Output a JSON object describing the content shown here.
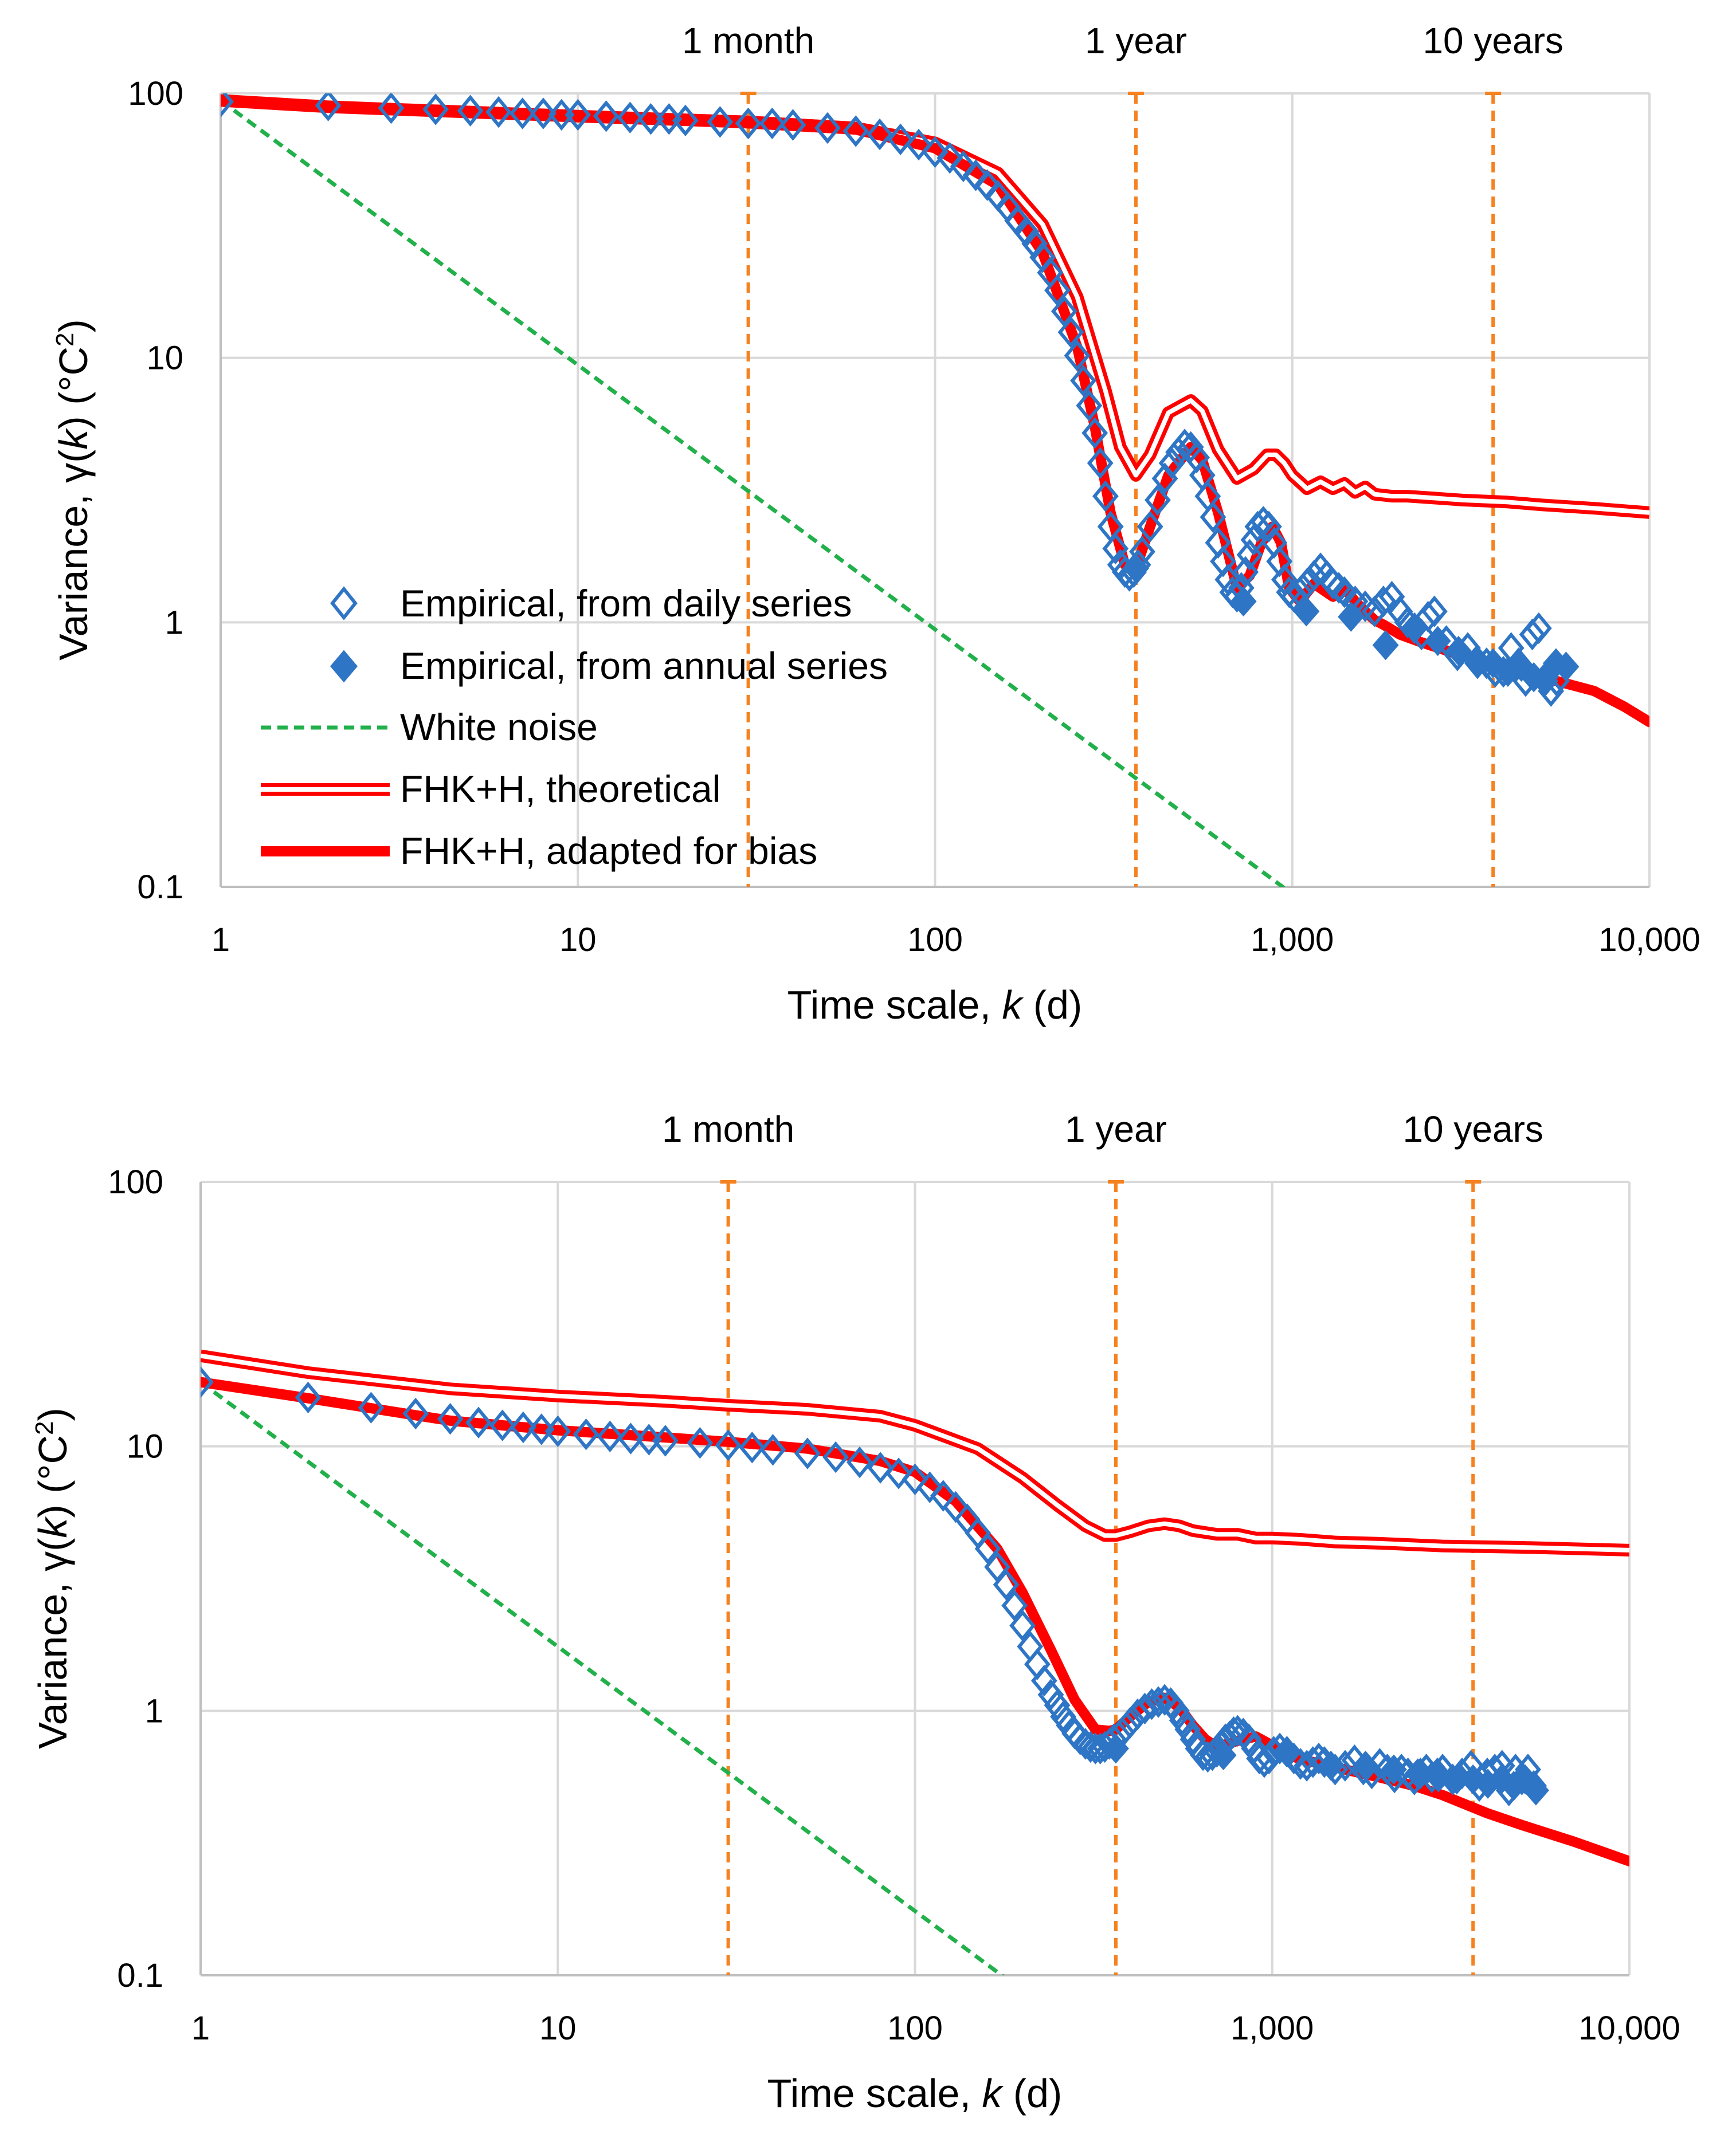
{
  "chart_data": [
    {
      "type": "scatter",
      "xscale": "log",
      "yscale": "log",
      "xlim": [
        1,
        10000
      ],
      "ylim": [
        0.1,
        100
      ],
      "grid": true,
      "xlabel": [
        "Time scale, ",
        "k",
        " (d)"
      ],
      "ylabel": [
        "Variance, γ(",
        "k",
        ") (°C",
        "2",
        ")"
      ],
      "xticks": [
        1,
        10,
        100,
        1000,
        10000
      ],
      "xtick_labels": [
        "1",
        "10",
        "100",
        "1,000",
        "10,000"
      ],
      "yticks": [
        0.1,
        1,
        10,
        100
      ],
      "ytick_labels": [
        "0.1",
        "1",
        "10",
        "100"
      ],
      "reference_lines": [
        {
          "label": "1 month",
          "x": 30
        },
        {
          "label": "1 year",
          "x": 365
        },
        {
          "label": "10 years",
          "x": 3650
        }
      ],
      "legend": {
        "placement": "lower-left",
        "entries": [
          {
            "key": "daily",
            "label": "Empirical, from daily series",
            "style": "open-diamond"
          },
          {
            "key": "annual",
            "label": "Empirical, from annual series",
            "style": "filled-diamond"
          },
          {
            "key": "white",
            "label": "White noise",
            "style": "dashed-green"
          },
          {
            "key": "theo",
            "label": "FHK+H, theoretical",
            "style": "double-red"
          },
          {
            "key": "adapt",
            "label": "FHK+H, adapted for bias",
            "style": "thick-red"
          }
        ]
      },
      "colors": {
        "empirical": "#2E75C5",
        "white_noise": "#22B04B",
        "fhk": "#FF0000",
        "reference": "#F5811F",
        "grid": "#D9D9D9",
        "axis": "#BFBFBF"
      },
      "series": [
        {
          "key": "theo",
          "x": [
            1,
            2,
            5,
            10,
            30,
            60,
            100,
            150,
            200,
            250,
            300,
            330,
            365,
            400,
            450,
            520,
            560,
            620,
            700,
            780,
            850,
            900,
            950,
            1000,
            1100,
            1200,
            1300,
            1400,
            1500,
            1600,
            1700,
            1900,
            2100,
            2500,
            3000,
            4000,
            5000,
            7000,
            10000
          ],
          "y": [
            94,
            89,
            85,
            82,
            78,
            74,
            65,
            50,
            32,
            17,
            7.5,
            4.6,
            3.6,
            4.3,
            6.2,
            6.9,
            6.3,
            4.5,
            3.5,
            3.8,
            4.3,
            4.3,
            4.0,
            3.6,
            3.2,
            3.4,
            3.2,
            3.35,
            3.1,
            3.25,
            3.05,
            3.0,
            3.0,
            2.95,
            2.9,
            2.85,
            2.78,
            2.7,
            2.6
          ]
        },
        {
          "key": "adapt",
          "x": [
            1,
            2,
            5,
            10,
            30,
            60,
            100,
            150,
            200,
            250,
            280,
            310,
            340,
            365,
            400,
            450,
            520,
            560,
            620,
            700,
            760,
            820,
            880,
            930,
            980,
            1050,
            1150,
            1300,
            1400,
            1500,
            1600,
            1700,
            1800,
            2000,
            2300,
            2800,
            3500,
            4500,
            5500,
            7000,
            8500,
            10000
          ],
          "y": [
            94,
            89,
            85,
            82,
            77,
            73,
            62,
            45,
            25,
            11,
            5.5,
            2.6,
            1.65,
            1.6,
            2.3,
            3.6,
            4.6,
            4.1,
            2.6,
            1.35,
            1.5,
            2.0,
            2.3,
            2.0,
            1.35,
            1.2,
            1.4,
            1.25,
            1.35,
            1.2,
            1.1,
            1.02,
            0.98,
            0.9,
            0.84,
            0.77,
            0.7,
            0.64,
            0.6,
            0.55,
            0.48,
            0.42
          ]
        },
        {
          "key": "white",
          "x": [
            1,
            1000
          ],
          "y": [
            94,
            0.094
          ]
        },
        {
          "key": "daily",
          "x": [
            1,
            2,
            3,
            4,
            5,
            6,
            7,
            8,
            9,
            10,
            12,
            14,
            16,
            18,
            20,
            25,
            30,
            35,
            40,
            50,
            60,
            70,
            80,
            90,
            100,
            110,
            120,
            130,
            140,
            150,
            160,
            170,
            180,
            190,
            200,
            210,
            220,
            230,
            240,
            250,
            260,
            270,
            280,
            290,
            300,
            310,
            320,
            330,
            340,
            350,
            360,
            370,
            380,
            400,
            420,
            440,
            460,
            480,
            500,
            520,
            540,
            560,
            580,
            600,
            620,
            640,
            660,
            680,
            700,
            720,
            740,
            760,
            780,
            800,
            830,
            860,
            890,
            920,
            950,
            980,
            1010,
            1050,
            1100,
            1150,
            1200,
            1250,
            1300,
            1350,
            1400,
            1500,
            1600,
            1700,
            1800,
            1900,
            2000,
            2100,
            2200,
            2300,
            2400,
            2500,
            2700,
            2900,
            3100,
            3300,
            3500,
            3700,
            3900,
            4100,
            4300,
            4500,
            4700,
            4900,
            5100,
            5300,
            5500
          ],
          "y": [
            93,
            90,
            88,
            87,
            86,
            85,
            84,
            84,
            83,
            83,
            82,
            81,
            80,
            80,
            79,
            78,
            77,
            77,
            76,
            74,
            72,
            70,
            67,
            64,
            60,
            57,
            53,
            49,
            45,
            41,
            37,
            33,
            30,
            27,
            24,
            21,
            18,
            15,
            12.5,
            10.2,
            8.2,
            6.6,
            5.2,
            4.0,
            3.0,
            2.3,
            1.9,
            1.65,
            1.55,
            1.5,
            1.55,
            1.65,
            1.85,
            2.3,
            2.9,
            3.5,
            4.0,
            4.4,
            4.7,
            4.6,
            4.2,
            3.6,
            3.0,
            2.5,
            2.0,
            1.7,
            1.45,
            1.3,
            1.25,
            1.35,
            1.55,
            1.8,
            2.05,
            2.3,
            2.4,
            2.3,
            2.0,
            1.7,
            1.45,
            1.3,
            1.25,
            1.3,
            1.4,
            1.5,
            1.6,
            1.5,
            1.4,
            1.35,
            1.3,
            1.2,
            1.15,
            1.1,
            1.2,
            1.25,
            1.1,
            1.0,
            0.95,
            0.9,
            1.05,
            1.1,
            0.85,
            0.75,
            0.8,
            0.7,
            0.7,
            0.65,
            0.65,
            0.8,
            0.7,
            0.6,
            0.9,
            0.95,
            0.6,
            0.55,
            0.6
          ]
        },
        {
          "key": "annual",
          "x": [
            365,
            730,
            1095,
            1460,
            1825,
            2190,
            2555,
            2920,
            3285,
            3650,
            4015,
            4380,
            4745,
            5110,
            5475,
            5840
          ],
          "y": [
            1.6,
            1.2,
            1.1,
            1.05,
            0.82,
            0.95,
            0.85,
            0.78,
            0.72,
            0.7,
            0.65,
            0.68,
            0.62,
            0.62,
            0.7,
            0.68
          ]
        }
      ]
    },
    {
      "type": "scatter",
      "xscale": "log",
      "yscale": "log",
      "xlim": [
        1,
        10000
      ],
      "ylim": [
        0.1,
        100
      ],
      "grid": true,
      "xlabel": [
        "Time scale, ",
        "k",
        " (d)"
      ],
      "ylabel": [
        "Variance, γ(",
        "k",
        ") (°C",
        "2",
        ")"
      ],
      "xticks": [
        1,
        10,
        100,
        1000,
        10000
      ],
      "xtick_labels": [
        "1",
        "10",
        "100",
        "1,000",
        "10,000"
      ],
      "yticks": [
        0.1,
        1,
        10,
        100
      ],
      "ytick_labels": [
        "0.1",
        "1",
        "10",
        "100"
      ],
      "reference_lines": [
        {
          "label": "1 month",
          "x": 30
        },
        {
          "label": "1 year",
          "x": 365
        },
        {
          "label": "10 years",
          "x": 3650
        }
      ],
      "colors": {
        "empirical": "#2E75C5",
        "white_noise": "#22B04B",
        "fhk": "#FF0000",
        "reference": "#F5811F",
        "grid": "#D9D9D9",
        "axis": "#BFBFBF"
      },
      "series": [
        {
          "key": "theo",
          "x": [
            1,
            2,
            5,
            10,
            20,
            30,
            50,
            80,
            100,
            150,
            200,
            250,
            300,
            340,
            365,
            400,
            450,
            500,
            550,
            600,
            700,
            800,
            900,
            1000,
            1200,
            1500,
            2000,
            3000,
            5000,
            10000
          ],
          "y": [
            22,
            19,
            16.5,
            15.5,
            14.8,
            14.3,
            13.8,
            13,
            12,
            9.8,
            7.6,
            6.0,
            5.0,
            4.6,
            4.6,
            4.75,
            5.0,
            5.1,
            5.0,
            4.8,
            4.65,
            4.65,
            4.5,
            4.5,
            4.45,
            4.35,
            4.3,
            4.2,
            4.15,
            4.05
          ]
        },
        {
          "key": "adapt",
          "x": [
            1,
            2,
            5,
            10,
            20,
            30,
            50,
            80,
            100,
            130,
            170,
            200,
            240,
            280,
            320,
            350,
            365,
            400,
            450,
            500,
            550,
            600,
            650,
            700,
            800,
            900,
            1000,
            1100,
            1300,
            1600,
            2000,
            2500,
            3000,
            4000,
            5000,
            7000,
            10000
          ],
          "y": [
            17.5,
            15.2,
            12.5,
            11.5,
            10.8,
            10.4,
            9.8,
            8.8,
            8.0,
            6.2,
            4.1,
            2.8,
            1.7,
            1.1,
            0.85,
            0.84,
            0.85,
            0.95,
            1.08,
            1.12,
            1.03,
            0.88,
            0.78,
            0.73,
            0.77,
            0.8,
            0.74,
            0.68,
            0.64,
            0.6,
            0.56,
            0.52,
            0.48,
            0.41,
            0.37,
            0.32,
            0.27
          ]
        },
        {
          "key": "white",
          "x": [
            1,
            180
          ],
          "y": [
            17.5,
            0.0972
          ]
        },
        {
          "key": "daily",
          "x": [
            1,
            2,
            3,
            4,
            5,
            6,
            7,
            8,
            9,
            10,
            12,
            14,
            16,
            18,
            20,
            25,
            30,
            35,
            40,
            50,
            60,
            70,
            80,
            90,
            100,
            110,
            120,
            130,
            140,
            150,
            160,
            170,
            180,
            190,
            200,
            210,
            220,
            230,
            240,
            250,
            260,
            270,
            280,
            290,
            300,
            310,
            320,
            330,
            340,
            350,
            360,
            380,
            400,
            420,
            440,
            460,
            480,
            500,
            520,
            540,
            560,
            580,
            600,
            620,
            640,
            660,
            680,
            700,
            720,
            740,
            760,
            780,
            800,
            830,
            860,
            890,
            920,
            950,
            980,
            1010,
            1050,
            1100,
            1150,
            1200,
            1250,
            1300,
            1350,
            1400,
            1500,
            1600,
            1700,
            1800,
            1900,
            2000,
            2100,
            2200,
            2300,
            2400,
            2500,
            2600,
            2700,
            2800,
            2900,
            3000,
            3200,
            3400,
            3600,
            3800,
            4000,
            4200,
            4400,
            4600,
            4800,
            5000,
            5200,
            5400
          ],
          "y": [
            17.5,
            15.3,
            14,
            13.3,
            12.7,
            12.3,
            12,
            11.8,
            11.6,
            11.4,
            11.1,
            10.9,
            10.7,
            10.6,
            10.5,
            10.3,
            10.1,
            9.9,
            9.7,
            9.4,
            9.1,
            8.7,
            8.3,
            7.9,
            7.5,
            7.0,
            6.5,
            5.9,
            5.3,
            4.7,
            4.1,
            3.5,
            3.0,
            2.5,
            2.1,
            1.75,
            1.5,
            1.3,
            1.15,
            1.05,
            0.95,
            0.88,
            0.82,
            0.78,
            0.75,
            0.73,
            0.72,
            0.72,
            0.73,
            0.75,
            0.78,
            0.83,
            0.9,
            0.97,
            1.02,
            1.06,
            1.08,
            1.1,
            1.07,
            1.0,
            0.92,
            0.85,
            0.78,
            0.72,
            0.68,
            0.67,
            0.68,
            0.7,
            0.74,
            0.78,
            0.8,
            0.83,
            0.84,
            0.82,
            0.78,
            0.72,
            0.66,
            0.64,
            0.66,
            0.7,
            0.72,
            0.7,
            0.66,
            0.63,
            0.62,
            0.64,
            0.66,
            0.64,
            0.6,
            0.62,
            0.65,
            0.6,
            0.58,
            0.63,
            0.6,
            0.56,
            0.6,
            0.58,
            0.55,
            0.58,
            0.6,
            0.56,
            0.58,
            0.6,
            0.55,
            0.58,
            0.62,
            0.52,
            0.58,
            0.6,
            0.62,
            0.5,
            0.6,
            0.55,
            0.6,
            0.52
          ]
        },
        {
          "key": "annual",
          "x": [
            365,
            730,
            1095,
            1460,
            1825,
            2190,
            2555,
            2920,
            3285,
            3650,
            4015,
            4380,
            4745,
            5110,
            5475
          ],
          "y": [
            0.72,
            0.68,
            0.7,
            0.62,
            0.62,
            0.6,
            0.58,
            0.56,
            0.55,
            0.55,
            0.53,
            0.55,
            0.52,
            0.55,
            0.5
          ]
        }
      ]
    }
  ]
}
